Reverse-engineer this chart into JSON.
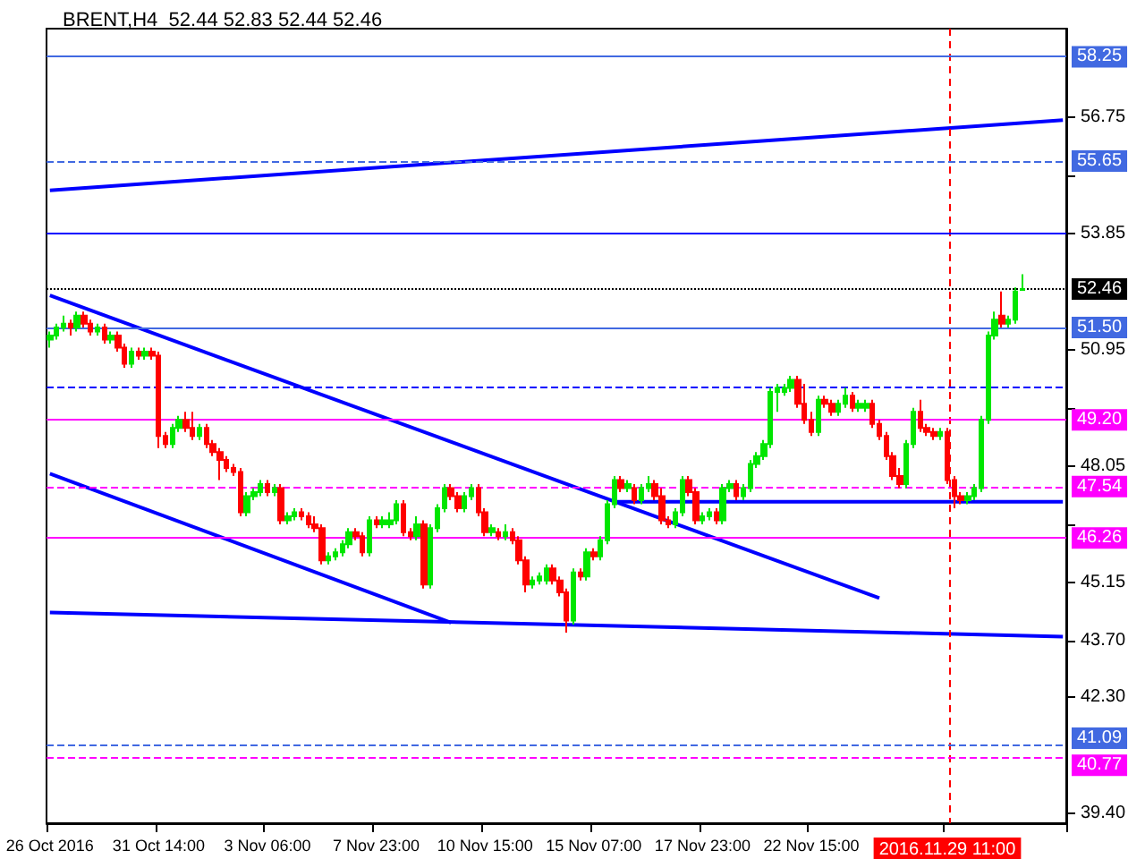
{
  "chart_data": {
    "type": "candlestick",
    "title": "BRENT,H4  52.44 52.83 52.44 52.46",
    "categories": [
      "26 Oct 2016",
      null,
      null,
      null,
      null,
      null,
      null,
      null,
      null,
      null,
      null,
      null,
      null,
      null,
      null,
      null,
      "31 Oct 14:00",
      null,
      null,
      null,
      null,
      null,
      null,
      null,
      null,
      null,
      null,
      null,
      null,
      null,
      null,
      null,
      "3 Nov 06:00",
      null,
      null,
      null,
      null,
      null,
      null,
      null,
      null,
      null,
      null,
      null,
      null,
      null,
      null,
      null,
      "7 Nov 23:00",
      null,
      null,
      null,
      null,
      null,
      null,
      null,
      null,
      null,
      null,
      null,
      null,
      null,
      null,
      null,
      "10 Nov 15:00",
      null,
      null,
      null,
      null,
      null,
      null,
      null,
      null,
      null,
      null,
      null,
      null,
      null,
      null,
      null,
      "15 Nov 07:00",
      null,
      null,
      null,
      null,
      null,
      null,
      null,
      null,
      null,
      null,
      null,
      null,
      null,
      null,
      null,
      "17 Nov 23:00",
      null,
      null,
      null,
      null,
      null,
      null,
      null,
      null,
      null,
      null,
      null,
      null,
      null,
      null,
      null,
      "22 Nov 15:00",
      null,
      null,
      null,
      null,
      null,
      null,
      null,
      null,
      null,
      null,
      null,
      null,
      null,
      null,
      null,
      null,
      null,
      null,
      null,
      "2016.11.29 11:00",
      null,
      null,
      null,
      null,
      null,
      null,
      null,
      null,
      null,
      null,
      null,
      null,
      null,
      null,
      null,
      null,
      null
    ],
    "colors": [
      "#00e600",
      "#00e600",
      "#00e600",
      "#ff0000",
      "#00e600",
      "#ff0000",
      "#ff0000",
      "#00e600",
      "#ff0000",
      "#00e600",
      "#ff0000",
      "#ff0000",
      "#00e600",
      "#ff0000",
      "#00e600",
      "#ff0000",
      "#ff0000",
      "#ff0000",
      "#00e600",
      "#00e600",
      "#ff0000",
      "#ff0000",
      "#00e600",
      "#ff0000",
      "#ff0000",
      "#ff0000",
      "#ff0000",
      "#ff0000",
      "#ff0000",
      "#00e600",
      "#00e600",
      "#00e600",
      "#ff0000",
      "#00e600",
      "#ff0000",
      "#00e600",
      "#00e600",
      "#ff0000",
      "#ff0000",
      "#ff0000",
      "#ff0000",
      "#00e600",
      "#00e600",
      "#00e600",
      "#00e600",
      "#ff0000",
      "#ff0000",
      "#00e600",
      "#ff0000",
      "#00e600",
      "#00e600",
      "#00e600",
      "#ff0000",
      "#ff0000",
      "#00e600",
      "#ff0000",
      "#00e600",
      "#00e600",
      "#00e600",
      "#ff0000",
      "#ff0000",
      "#00e600",
      "#00e600",
      "#ff0000",
      "#ff0000",
      "#00e600",
      "#ff0000",
      "#00e600",
      "#ff0000",
      "#ff0000",
      "#ff0000",
      "#00e600",
      "#00e600",
      "#00e600",
      "#ff0000",
      "#ff0000",
      "#ff0000",
      "#00e600",
      "#ff0000",
      "#00e600",
      "#ff0000",
      "#00e600",
      "#00e600",
      "#00e600",
      "#ff0000",
      "#00e600",
      "#ff0000",
      "#00e600",
      "#00e600",
      "#ff0000",
      "#ff0000",
      "#ff0000",
      "#00e600",
      "#00e600",
      "#ff0000",
      "#ff0000",
      "#00e600",
      "#00e600",
      "#ff0000",
      "#00e600",
      "#00e600",
      "#ff0000",
      "#00e600",
      "#00e600",
      "#00e600",
      "#00e600",
      "#00e600",
      "#00e600",
      "#00e600",
      "#00e600",
      "#ff0000",
      "#ff0000",
      "#ff0000",
      "#00e600",
      "#ff0000",
      "#ff0000",
      "#00e600",
      "#00e600",
      "#ff0000",
      "#00e600",
      "#00e600",
      "#ff0000",
      "#ff0000",
      "#ff0000",
      "#ff0000",
      "#ff0000",
      "#00e600",
      "#00e600",
      "#ff0000",
      "#ff0000",
      "#ff0000",
      "#00e600",
      "#ff0000",
      "#ff0000",
      "#ff0000",
      "#00e600",
      "#00e600",
      "#00e600",
      "#00e600",
      "#00e600",
      "#ff0000",
      "#00e600",
      "#00e600",
      "#00e600",
      null,
      null,
      null,
      null,
      null,
      null
    ],
    "ohlc": [
      [
        51.2,
        51.4,
        51.0,
        51.3
      ],
      [
        51.3,
        51.6,
        51.2,
        51.5
      ],
      [
        51.5,
        51.8,
        51.4,
        51.6
      ],
      [
        51.6,
        51.7,
        51.3,
        51.5
      ],
      [
        51.5,
        51.9,
        51.4,
        51.8
      ],
      [
        51.8,
        51.9,
        51.5,
        51.6
      ],
      [
        51.6,
        51.7,
        51.3,
        51.4
      ],
      [
        51.4,
        51.6,
        51.3,
        51.5
      ],
      [
        51.5,
        51.6,
        51.1,
        51.2
      ],
      [
        51.2,
        51.4,
        51.1,
        51.3
      ],
      [
        51.3,
        51.4,
        50.9,
        51.0
      ],
      [
        51.0,
        51.1,
        50.5,
        50.6
      ],
      [
        50.6,
        51.0,
        50.5,
        50.9
      ],
      [
        50.9,
        51.0,
        50.7,
        50.8
      ],
      [
        50.8,
        51.0,
        50.7,
        50.9
      ],
      [
        50.9,
        51.0,
        50.7,
        50.8
      ],
      [
        50.8,
        50.9,
        48.5,
        48.8
      ],
      [
        48.8,
        48.9,
        48.5,
        48.6
      ],
      [
        48.6,
        49.1,
        48.5,
        49.0
      ],
      [
        49.0,
        49.3,
        48.9,
        49.2
      ],
      [
        49.2,
        49.4,
        48.9,
        49.0
      ],
      [
        49.0,
        49.4,
        48.7,
        48.8
      ],
      [
        48.8,
        49.1,
        48.7,
        49.0
      ],
      [
        49.0,
        49.1,
        48.5,
        48.6
      ],
      [
        48.6,
        48.7,
        48.3,
        48.4
      ],
      [
        48.4,
        48.5,
        47.7,
        48.2
      ],
      [
        48.2,
        48.3,
        47.9,
        48.0
      ],
      [
        48.0,
        48.1,
        47.8,
        47.9
      ],
      [
        47.9,
        48.0,
        46.8,
        46.9
      ],
      [
        46.9,
        47.4,
        46.8,
        47.3
      ],
      [
        47.3,
        47.5,
        47.2,
        47.4
      ],
      [
        47.4,
        47.7,
        47.3,
        47.6
      ],
      [
        47.6,
        47.7,
        47.3,
        47.4
      ],
      [
        47.4,
        47.6,
        47.3,
        47.5
      ],
      [
        47.5,
        47.6,
        46.6,
        46.7
      ],
      [
        46.7,
        46.9,
        46.6,
        46.8
      ],
      [
        46.8,
        47.0,
        46.7,
        46.9
      ],
      [
        46.9,
        47.0,
        46.7,
        46.8
      ],
      [
        46.8,
        46.9,
        46.5,
        46.6
      ],
      [
        46.6,
        46.8,
        46.4,
        46.5
      ],
      [
        46.5,
        46.6,
        45.6,
        45.7
      ],
      [
        45.7,
        45.9,
        45.6,
        45.8
      ],
      [
        45.8,
        46.0,
        45.7,
        45.9
      ],
      [
        45.9,
        46.2,
        45.8,
        46.1
      ],
      [
        46.1,
        46.5,
        46.0,
        46.4
      ],
      [
        46.4,
        46.5,
        46.2,
        46.3
      ],
      [
        46.3,
        46.4,
        45.8,
        45.9
      ],
      [
        45.9,
        46.8,
        45.8,
        46.7
      ],
      [
        46.7,
        46.8,
        46.5,
        46.6
      ],
      [
        46.6,
        46.8,
        46.5,
        46.7
      ],
      [
        46.6,
        46.9,
        46.5,
        46.7
      ],
      [
        46.7,
        47.2,
        46.6,
        47.1
      ],
      [
        47.1,
        47.2,
        46.3,
        46.4
      ],
      [
        46.4,
        46.5,
        46.2,
        46.3
      ],
      [
        46.3,
        46.8,
        46.2,
        46.6
      ],
      [
        46.6,
        46.7,
        45.0,
        45.1
      ],
      [
        45.1,
        46.6,
        45.0,
        46.5
      ],
      [
        46.5,
        47.1,
        46.4,
        47.0
      ],
      [
        47.0,
        47.6,
        46.9,
        47.5
      ],
      [
        47.5,
        47.6,
        47.2,
        47.3
      ],
      [
        47.3,
        47.4,
        46.9,
        47.0
      ],
      [
        47.0,
        47.4,
        46.9,
        47.3
      ],
      [
        47.3,
        47.6,
        47.2,
        47.5
      ],
      [
        47.5,
        47.6,
        46.8,
        46.9
      ],
      [
        46.9,
        47.0,
        46.3,
        46.4
      ],
      [
        46.4,
        46.6,
        46.3,
        46.5
      ],
      [
        46.4,
        46.5,
        46.2,
        46.3
      ],
      [
        46.3,
        46.6,
        46.2,
        46.4
      ],
      [
        46.4,
        46.5,
        46.1,
        46.2
      ],
      [
        46.2,
        46.3,
        45.6,
        45.7
      ],
      [
        45.7,
        45.8,
        44.9,
        45.1
      ],
      [
        45.1,
        45.3,
        45.0,
        45.2
      ],
      [
        45.2,
        45.4,
        45.1,
        45.3
      ],
      [
        45.2,
        45.6,
        45.1,
        45.5
      ],
      [
        45.5,
        45.6,
        45.1,
        45.2
      ],
      [
        45.2,
        45.3,
        44.8,
        44.9
      ],
      [
        44.9,
        45.0,
        43.9,
        44.2
      ],
      [
        44.2,
        45.5,
        44.1,
        45.4
      ],
      [
        45.4,
        45.5,
        45.2,
        45.3
      ],
      [
        45.3,
        46.0,
        45.2,
        45.9
      ],
      [
        45.9,
        46.0,
        45.7,
        45.8
      ],
      [
        45.8,
        46.3,
        45.7,
        46.2
      ],
      [
        46.2,
        47.2,
        46.1,
        47.1
      ],
      [
        47.1,
        47.8,
        47.0,
        47.7
      ],
      [
        47.7,
        47.8,
        47.4,
        47.5
      ],
      [
        47.5,
        47.7,
        47.4,
        47.6
      ],
      [
        47.5,
        47.6,
        47.1,
        47.2
      ],
      [
        47.2,
        47.6,
        47.1,
        47.5
      ],
      [
        47.5,
        47.8,
        47.4,
        47.6
      ],
      [
        47.6,
        47.7,
        47.2,
        47.3
      ],
      [
        47.3,
        47.5,
        46.6,
        46.7
      ],
      [
        46.7,
        46.8,
        46.5,
        46.6
      ],
      [
        46.6,
        47.0,
        46.5,
        46.9
      ],
      [
        46.9,
        47.8,
        46.8,
        47.7
      ],
      [
        47.7,
        47.8,
        47.3,
        47.4
      ],
      [
        47.4,
        47.5,
        46.6,
        46.7
      ],
      [
        46.7,
        46.9,
        46.6,
        46.8
      ],
      [
        46.8,
        47.0,
        46.7,
        46.9
      ],
      [
        46.9,
        47.0,
        46.6,
        46.7
      ],
      [
        46.7,
        47.6,
        46.6,
        47.5
      ],
      [
        47.5,
        47.7,
        47.4,
        47.6
      ],
      [
        47.6,
        47.7,
        47.2,
        47.3
      ],
      [
        47.3,
        47.6,
        47.2,
        47.5
      ],
      [
        47.5,
        48.2,
        47.4,
        48.1
      ],
      [
        48.1,
        48.4,
        48.0,
        48.3
      ],
      [
        48.3,
        48.7,
        48.2,
        48.6
      ],
      [
        48.6,
        50.0,
        48.5,
        49.9
      ],
      [
        49.9,
        50.1,
        49.4,
        50.0
      ],
      [
        49.9,
        50.1,
        49.8,
        50.0
      ],
      [
        50.0,
        50.3,
        49.9,
        50.2
      ],
      [
        50.2,
        50.3,
        49.5,
        49.6
      ],
      [
        49.6,
        50.1,
        49.1,
        49.2
      ],
      [
        49.2,
        49.4,
        48.8,
        48.9
      ],
      [
        48.9,
        49.8,
        48.8,
        49.7
      ],
      [
        49.7,
        49.8,
        49.5,
        49.6
      ],
      [
        49.6,
        49.7,
        49.3,
        49.4
      ],
      [
        49.4,
        49.7,
        49.3,
        49.6
      ],
      [
        49.6,
        50.0,
        49.5,
        49.8
      ],
      [
        49.8,
        49.9,
        49.4,
        49.5
      ],
      [
        49.5,
        49.7,
        49.4,
        49.6
      ],
      [
        49.5,
        49.7,
        49.4,
        49.6
      ],
      [
        49.6,
        49.7,
        49.0,
        49.1
      ],
      [
        49.1,
        49.2,
        48.7,
        48.8
      ],
      [
        48.8,
        48.9,
        48.2,
        48.3
      ],
      [
        48.3,
        48.4,
        47.7,
        47.8
      ],
      [
        47.8,
        48.0,
        47.5,
        47.6
      ],
      [
        47.6,
        48.7,
        47.5,
        48.6
      ],
      [
        48.6,
        49.5,
        48.5,
        49.4
      ],
      [
        49.4,
        49.7,
        48.9,
        49.0
      ],
      [
        49.0,
        49.1,
        48.8,
        48.9
      ],
      [
        48.9,
        49.0,
        48.7,
        48.8
      ],
      [
        48.8,
        49.0,
        48.7,
        48.9
      ],
      [
        48.9,
        49.0,
        47.6,
        47.7
      ],
      [
        47.7,
        47.8,
        47.0,
        47.3
      ],
      [
        47.3,
        47.4,
        47.1,
        47.2
      ],
      [
        47.2,
        47.4,
        47.1,
        47.3
      ],
      [
        47.3,
        47.6,
        47.2,
        47.5
      ],
      [
        47.5,
        49.3,
        47.4,
        49.2
      ],
      [
        49.2,
        51.4,
        49.1,
        51.3
      ],
      [
        51.3,
        51.9,
        51.2,
        51.7
      ],
      [
        51.8,
        52.4,
        51.5,
        51.6
      ],
      [
        51.6,
        51.8,
        51.5,
        51.7
      ],
      [
        51.7,
        52.5,
        51.6,
        52.4
      ],
      [
        52.44,
        52.83,
        52.44,
        52.46
      ],
      null,
      null,
      null,
      null,
      null,
      null
    ],
    "series": [
      {
        "type": "line",
        "color": "#0000ff",
        "values": [
          52.3,
          null,
          null,
          null,
          null,
          null,
          null,
          null,
          null,
          null,
          null,
          null,
          null,
          null,
          null,
          null,
          null,
          null,
          null,
          null,
          null,
          null,
          null,
          null,
          null,
          null,
          null,
          null,
          null,
          null,
          null,
          null,
          null,
          null,
          null,
          null,
          null,
          null,
          null,
          null,
          null,
          null,
          null,
          null,
          null,
          null,
          null,
          null,
          null,
          null,
          null,
          null,
          null,
          null,
          null,
          null,
          null,
          null,
          null,
          null,
          null,
          null,
          null,
          null,
          null,
          null,
          null,
          null,
          null,
          null,
          null,
          null,
          null,
          null,
          null,
          null,
          null,
          null,
          null,
          null,
          null,
          null,
          null,
          null,
          null,
          null,
          null,
          null,
          null,
          null,
          null,
          null,
          null,
          null,
          null,
          null,
          null,
          null,
          null,
          null,
          null,
          null,
          null,
          null,
          null,
          null,
          null,
          null,
          null,
          null,
          null,
          null,
          null,
          null,
          null,
          null,
          null,
          null,
          null,
          null,
          null,
          null,
          44.76,
          null,
          null,
          null,
          null,
          null,
          null,
          null,
          null,
          null,
          null,
          null,
          null,
          null,
          null,
          null,
          null,
          null,
          null,
          null,
          null,
          null,
          null,
          null,
          null,
          null,
          null,
          null
        ]
      },
      {
        "type": "line",
        "color": "#0000ff",
        "values": [
          47.86,
          null,
          null,
          null,
          null,
          null,
          null,
          null,
          null,
          null,
          null,
          null,
          null,
          null,
          null,
          null,
          null,
          null,
          null,
          null,
          null,
          null,
          null,
          null,
          null,
          null,
          null,
          null,
          null,
          null,
          null,
          null,
          null,
          null,
          null,
          null,
          null,
          null,
          null,
          null,
          null,
          null,
          null,
          null,
          null,
          null,
          null,
          null,
          null,
          null,
          null,
          null,
          null,
          null,
          null,
          null,
          null,
          null,
          null,
          44.15,
          null,
          null,
          null,
          null,
          null,
          null,
          null,
          null,
          null,
          null,
          null,
          null,
          null,
          null,
          null,
          null,
          null,
          null,
          null,
          null,
          null,
          null,
          null,
          null,
          null,
          null,
          null,
          null,
          null,
          null,
          null,
          null,
          null,
          null,
          null,
          null,
          null,
          null,
          null,
          null,
          null,
          null,
          null,
          null,
          null,
          null,
          null,
          null,
          null,
          null,
          null,
          null,
          null,
          null,
          null,
          null,
          null,
          null,
          null,
          null,
          null,
          null,
          null,
          null,
          null,
          null,
          null,
          null,
          null,
          null,
          null,
          null,
          null,
          null,
          null,
          null,
          null,
          null,
          null,
          null,
          null,
          null,
          null,
          null,
          null,
          null,
          null,
          null,
          null,
          null
        ]
      },
      {
        "type": "line",
        "color": "#0000ff",
        "values": [
          null,
          null,
          null,
          null,
          null,
          null,
          null,
          null,
          null,
          null,
          null,
          null,
          null,
          null,
          null,
          null,
          null,
          null,
          null,
          null,
          null,
          null,
          null,
          null,
          null,
          null,
          null,
          null,
          null,
          null,
          null,
          null,
          null,
          null,
          null,
          null,
          null,
          null,
          null,
          null,
          null,
          null,
          null,
          null,
          null,
          null,
          null,
          null,
          null,
          null,
          null,
          null,
          null,
          null,
          null,
          null,
          null,
          null,
          null,
          null,
          null,
          null,
          null,
          null,
          null,
          null,
          null,
          null,
          null,
          null,
          null,
          null,
          null,
          null,
          null,
          null,
          null,
          null,
          null,
          null,
          null,
          null,
          null,
          47.16,
          null,
          null,
          null,
          null,
          null,
          null,
          null,
          null,
          null,
          null,
          null,
          null,
          null,
          null,
          null,
          null,
          null,
          null,
          null,
          null,
          null,
          null,
          null,
          null,
          null,
          null,
          null,
          null,
          null,
          null,
          null,
          null,
          null,
          null,
          null,
          null,
          null,
          null,
          null,
          null,
          null,
          null,
          null,
          null,
          null,
          null,
          null,
          null,
          null,
          null,
          null,
          null,
          null,
          null,
          null,
          null,
          null,
          null,
          null,
          null,
          null,
          null,
          null,
          null,
          null,
          47.16
        ]
      },
      {
        "type": "line",
        "color": "#0000ff",
        "values": [
          54.92,
          null,
          null,
          null,
          null,
          null,
          null,
          null,
          null,
          null,
          null,
          null,
          null,
          null,
          null,
          null,
          null,
          null,
          null,
          null,
          null,
          null,
          null,
          null,
          null,
          null,
          null,
          null,
          null,
          null,
          null,
          null,
          null,
          null,
          null,
          null,
          null,
          null,
          null,
          null,
          null,
          null,
          null,
          null,
          null,
          null,
          null,
          null,
          null,
          null,
          null,
          null,
          null,
          null,
          null,
          null,
          null,
          null,
          null,
          null,
          null,
          null,
          null,
          null,
          null,
          null,
          null,
          null,
          null,
          null,
          null,
          null,
          null,
          null,
          null,
          null,
          null,
          null,
          null,
          null,
          null,
          null,
          null,
          null,
          null,
          null,
          null,
          null,
          null,
          null,
          null,
          null,
          null,
          null,
          null,
          null,
          null,
          null,
          null,
          null,
          null,
          null,
          null,
          null,
          null,
          null,
          null,
          null,
          null,
          null,
          null,
          null,
          null,
          null,
          null,
          null,
          null,
          null,
          null,
          null,
          null,
          null,
          null,
          null,
          null,
          null,
          null,
          null,
          null,
          null,
          null,
          null,
          null,
          null,
          null,
          null,
          null,
          null,
          null,
          null,
          null,
          null,
          null,
          null,
          null,
          null,
          null,
          null,
          null,
          56.67
        ]
      },
      {
        "type": "line",
        "color": "#0000ff",
        "values": [
          44.4,
          null,
          null,
          null,
          null,
          null,
          null,
          null,
          null,
          null,
          null,
          null,
          null,
          null,
          null,
          null,
          null,
          null,
          null,
          null,
          null,
          null,
          null,
          null,
          null,
          null,
          null,
          null,
          null,
          null,
          null,
          null,
          null,
          null,
          null,
          null,
          null,
          null,
          null,
          null,
          null,
          null,
          null,
          null,
          null,
          null,
          null,
          null,
          null,
          null,
          null,
          null,
          null,
          null,
          null,
          null,
          null,
          null,
          null,
          null,
          null,
          null,
          null,
          null,
          null,
          null,
          null,
          null,
          null,
          null,
          null,
          null,
          null,
          null,
          null,
          null,
          null,
          null,
          null,
          null,
          null,
          null,
          null,
          null,
          null,
          null,
          null,
          null,
          null,
          null,
          null,
          null,
          null,
          null,
          null,
          null,
          null,
          null,
          null,
          null,
          null,
          null,
          null,
          null,
          null,
          null,
          null,
          null,
          null,
          null,
          null,
          null,
          null,
          null,
          null,
          null,
          null,
          null,
          null,
          null,
          null,
          null,
          null,
          null,
          null,
          null,
          null,
          null,
          null,
          null,
          null,
          null,
          null,
          null,
          null,
          null,
          null,
          null,
          null,
          null,
          null,
          null,
          null,
          null,
          null,
          null,
          null,
          null,
          null,
          43.8
        ]
      }
    ],
    "ylim": [
      39.15,
      58.95
    ],
    "yticks": [
      {
        "value": 39.4,
        "label": "39.40"
      },
      {
        "value": 42.3,
        "label": "42.30"
      },
      {
        "value": 43.7,
        "label": "43.70"
      },
      {
        "value": 45.15,
        "label": "45.15"
      },
      {
        "value": 46.6,
        "label": null
      },
      {
        "value": 48.05,
        "label": "48.05"
      },
      {
        "value": 49.5,
        "label": null
      },
      {
        "value": 50.95,
        "label": "50.95"
      },
      {
        "value": 53.85,
        "label": "53.85"
      },
      {
        "value": 55.3,
        "label": null
      },
      {
        "value": 56.75,
        "label": "56.75"
      }
    ],
    "ref_lines": [
      {
        "axis": "y",
        "value": 58.25,
        "label": "58.25",
        "color": "#4169e1",
        "line_style": "solid"
      },
      {
        "axis": "y",
        "value": 55.65,
        "label": "55.65",
        "color": "#4169e1",
        "line_style": "dashed"
      },
      {
        "axis": "y",
        "value": 53.85,
        "color": "#0000ff",
        "line_style": "solid"
      },
      {
        "axis": "y",
        "value": 52.46,
        "label": "52.46",
        "color": "#000000",
        "line_style": "dotted"
      },
      {
        "axis": "y",
        "value": 51.5,
        "label": "51.50",
        "color": "#4169e1",
        "line_style": "solid"
      },
      {
        "axis": "y",
        "value": 50.0,
        "color": "#0000ff",
        "line_style": "dashed"
      },
      {
        "axis": "y",
        "value": 49.2,
        "label": "49.20",
        "color": "#ff00ff",
        "line_style": "solid"
      },
      {
        "axis": "y",
        "value": 47.54,
        "label": "47.54",
        "color": "#ff00ff",
        "line_style": "dashed"
      },
      {
        "axis": "y",
        "value": 46.26,
        "label": "46.26",
        "color": "#ff00ff",
        "line_style": "solid"
      },
      {
        "axis": "y",
        "value": 41.09,
        "label": "41.09",
        "color": "#4169e1",
        "line_style": "dashed"
      },
      {
        "axis": "y",
        "value": 40.77,
        "label": "40.77",
        "color": "#ff00ff",
        "line_style": "dashed"
      },
      {
        "axis": "x",
        "value": "2016.11.29 11:00",
        "color": "#ff0000",
        "line_style": "dashed"
      }
    ],
    "grid": false
  }
}
